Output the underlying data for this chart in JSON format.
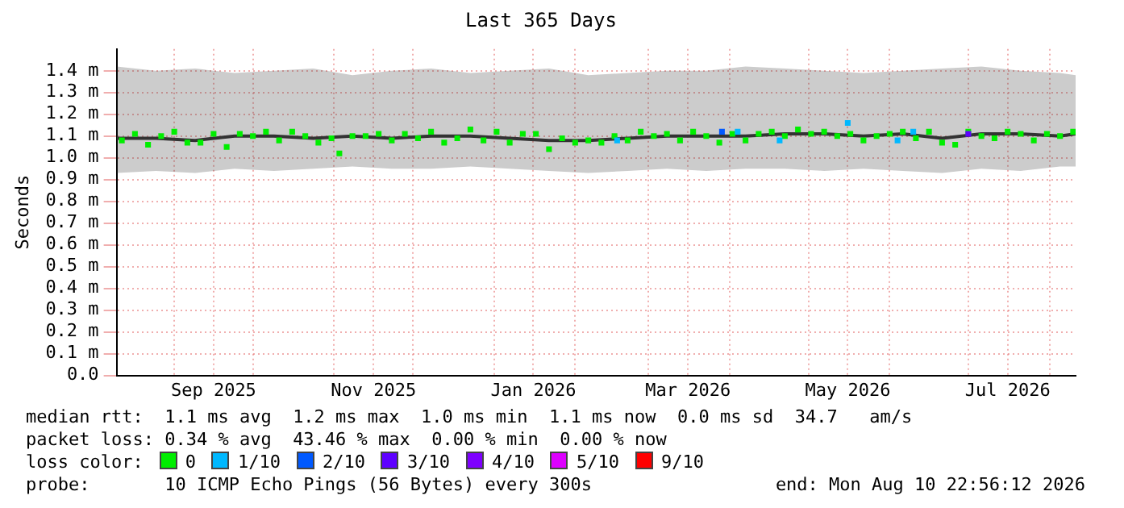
{
  "chart_data": {
    "type": "scatter",
    "title": "Last 365 Days",
    "ylabel": "Seconds",
    "xlim": [
      "2025-08-10",
      "2026-08-10T22:56"
    ],
    "xticks": [
      {
        "value": "2025-09-01",
        "label": null
      },
      {
        "value": "2025-09-16",
        "label": "Sep 2025"
      },
      {
        "value": "2025-10-01",
        "label": null
      },
      {
        "value": "2025-11-01",
        "label": null
      },
      {
        "value": "2025-11-16",
        "label": "Nov 2025"
      },
      {
        "value": "2025-12-01",
        "label": null
      },
      {
        "value": "2026-01-01",
        "label": null
      },
      {
        "value": "2026-01-16",
        "label": "Jan 2026"
      },
      {
        "value": "2026-02-01",
        "label": null
      },
      {
        "value": "2026-03-01",
        "label": null
      },
      {
        "value": "2026-03-16",
        "label": "Mar 2026"
      },
      {
        "value": "2026-04-01",
        "label": null
      },
      {
        "value": "2026-05-01",
        "label": null
      },
      {
        "value": "2026-05-16",
        "label": "May 2026"
      },
      {
        "value": "2026-06-01",
        "label": null
      },
      {
        "value": "2026-07-01",
        "label": null
      },
      {
        "value": "2026-07-16",
        "label": "Jul 2026"
      },
      {
        "value": "2026-08-01",
        "label": null
      }
    ],
    "ylim": [
      0,
      1.5
    ],
    "yticks": [
      {
        "value": 0,
        "label": "0.0"
      },
      {
        "value": 0.1,
        "label": "0.1 m"
      },
      {
        "value": 0.2,
        "label": "0.2 m"
      },
      {
        "value": 0.3,
        "label": "0.3 m"
      },
      {
        "value": 0.4,
        "label": "0.4 m"
      },
      {
        "value": 0.5,
        "label": "0.5 m"
      },
      {
        "value": 0.6,
        "label": "0.6 m"
      },
      {
        "value": 0.7,
        "label": "0.7 m"
      },
      {
        "value": 0.8,
        "label": "0.8 m"
      },
      {
        "value": 0.9,
        "label": "0.9 m"
      },
      {
        "value": 1.0,
        "label": "1.0 m"
      },
      {
        "value": 1.1,
        "label": "1.1 m"
      },
      {
        "value": 1.2,
        "label": "1.2 m"
      },
      {
        "value": 1.3,
        "label": "1.3 m"
      },
      {
        "value": 1.4,
        "label": "1.4 m"
      }
    ],
    "grid": true,
    "legend": "bottom",
    "legend_title": "loss color:",
    "marker": "square",
    "series": [
      {
        "type": "line",
        "marker": "none",
        "color": "#333333",
        "x": [
          "2025-08-10",
          "2025-08-25",
          "2025-09-09",
          "2025-09-24",
          "2025-10-09",
          "2025-10-24",
          "2025-11-08",
          "2025-11-23",
          "2025-12-08",
          "2025-12-23",
          "2026-01-07",
          "2026-01-22",
          "2026-02-06",
          "2026-02-21",
          "2026-03-08",
          "2026-03-23",
          "2026-04-07",
          "2026-04-22",
          "2026-05-07",
          "2026-05-22",
          "2026-06-06",
          "2026-06-21",
          "2026-07-06",
          "2026-07-21",
          "2026-08-05",
          "2026-08-10T22:56"
        ],
        "values": [
          1.09,
          1.09,
          1.08,
          1.1,
          1.1,
          1.09,
          1.1,
          1.09,
          1.1,
          1.1,
          1.09,
          1.08,
          1.08,
          1.09,
          1.1,
          1.1,
          1.1,
          1.11,
          1.11,
          1.1,
          1.11,
          1.09,
          1.11,
          1.11,
          1.1,
          1.11
        ],
        "lower": [
          0.93,
          0.94,
          0.93,
          0.95,
          0.94,
          0.95,
          0.96,
          0.95,
          0.95,
          0.96,
          0.95,
          0.94,
          0.93,
          0.94,
          0.95,
          0.94,
          0.95,
          0.95,
          0.94,
          0.95,
          0.94,
          0.93,
          0.95,
          0.94,
          0.96,
          0.96
        ],
        "upper": [
          1.42,
          1.4,
          1.41,
          1.39,
          1.4,
          1.41,
          1.38,
          1.4,
          1.41,
          1.39,
          1.4,
          1.41,
          1.38,
          1.39,
          1.4,
          1.4,
          1.42,
          1.41,
          1.4,
          1.39,
          1.4,
          1.41,
          1.42,
          1.4,
          1.39,
          1.38
        ]
      },
      {
        "name": "0",
        "color": "#00ee00",
        "x": [
          "2025-08-12",
          "2025-08-17",
          "2025-08-22",
          "2025-08-27",
          "2025-09-01",
          "2025-09-06",
          "2025-09-11",
          "2025-09-16",
          "2025-09-21",
          "2025-09-26",
          "2025-10-01",
          "2025-10-06",
          "2025-10-11",
          "2025-10-16",
          "2025-10-21",
          "2025-10-26",
          "2025-10-31",
          "2025-11-03",
          "2025-11-08",
          "2025-11-13",
          "2025-11-18",
          "2025-11-23",
          "2025-11-28",
          "2025-12-03",
          "2025-12-08",
          "2025-12-13",
          "2025-12-18",
          "2025-12-23",
          "2025-12-28",
          "2026-01-02",
          "2026-01-07",
          "2026-01-12",
          "2026-01-17",
          "2026-01-22",
          "2026-01-27",
          "2026-02-01",
          "2026-02-06",
          "2026-02-11",
          "2026-02-16",
          "2026-02-21",
          "2026-02-26",
          "2026-03-03",
          "2026-03-08",
          "2026-03-13",
          "2026-03-18",
          "2026-03-23",
          "2026-03-28",
          "2026-04-02",
          "2026-04-07",
          "2026-04-12",
          "2026-04-17",
          "2026-04-22",
          "2026-04-27",
          "2026-05-02",
          "2026-05-07",
          "2026-05-12",
          "2026-05-17",
          "2026-05-22",
          "2026-05-27",
          "2026-06-01",
          "2026-06-06",
          "2026-06-11",
          "2026-06-16",
          "2026-06-21",
          "2026-06-26",
          "2026-07-01",
          "2026-07-06",
          "2026-07-11",
          "2026-07-16",
          "2026-07-21",
          "2026-07-26",
          "2026-07-31",
          "2026-08-05",
          "2026-08-10"
        ],
        "values": [
          1.08,
          1.11,
          1.06,
          1.1,
          1.12,
          1.07,
          1.07,
          1.11,
          1.05,
          1.11,
          1.1,
          1.12,
          1.08,
          1.12,
          1.1,
          1.07,
          1.09,
          1.02,
          1.1,
          1.1,
          1.11,
          1.08,
          1.11,
          1.09,
          1.12,
          1.07,
          1.09,
          1.13,
          1.08,
          1.12,
          1.07,
          1.11,
          1.11,
          1.04,
          1.09,
          1.07,
          1.08,
          1.07,
          1.1,
          1.08,
          1.12,
          1.1,
          1.11,
          1.08,
          1.12,
          1.1,
          1.07,
          1.11,
          1.08,
          1.11,
          1.12,
          1.1,
          1.13,
          1.11,
          1.12,
          1.1,
          1.11,
          1.08,
          1.1,
          1.11,
          1.12,
          1.09,
          1.12,
          1.07,
          1.06,
          1.12,
          1.1,
          1.09,
          1.12,
          1.11,
          1.08,
          1.11,
          1.1,
          1.12
        ]
      },
      {
        "name": "1/10",
        "color": "#00b8ff",
        "x": [
          "2026-02-17",
          "2026-04-04",
          "2026-04-20",
          "2026-05-16",
          "2026-06-04",
          "2026-06-10"
        ],
        "values": [
          1.08,
          1.12,
          1.08,
          1.16,
          1.08,
          1.12
        ]
      },
      {
        "name": "2/10",
        "color": "#0059ff",
        "x": [
          "2026-03-29"
        ],
        "values": [
          1.12
        ]
      },
      {
        "name": "3/10",
        "color": "#5e00ff",
        "x": [
          "2026-07-01"
        ],
        "values": [
          1.11
        ]
      },
      {
        "name": "4/10",
        "color": "#7e00ff"
      },
      {
        "name": "5/10",
        "color": "#dd00ff"
      },
      {
        "name": "9/10",
        "color": "#ff0000"
      }
    ],
    "annotations": [
      "median rtt:  1.1 ms avg  1.2 ms max  1.0 ms min  1.1 ms now  0.0 ms sd  34.7   am/s",
      "packet loss: 0.34 % avg  43.46 % max  0.00 % min  0.00 % now",
      "probe:       10 ICMP Echo Pings (56 Bytes) every 300s",
      "end: Mon Aug 10 22:56:12 2026"
    ]
  }
}
